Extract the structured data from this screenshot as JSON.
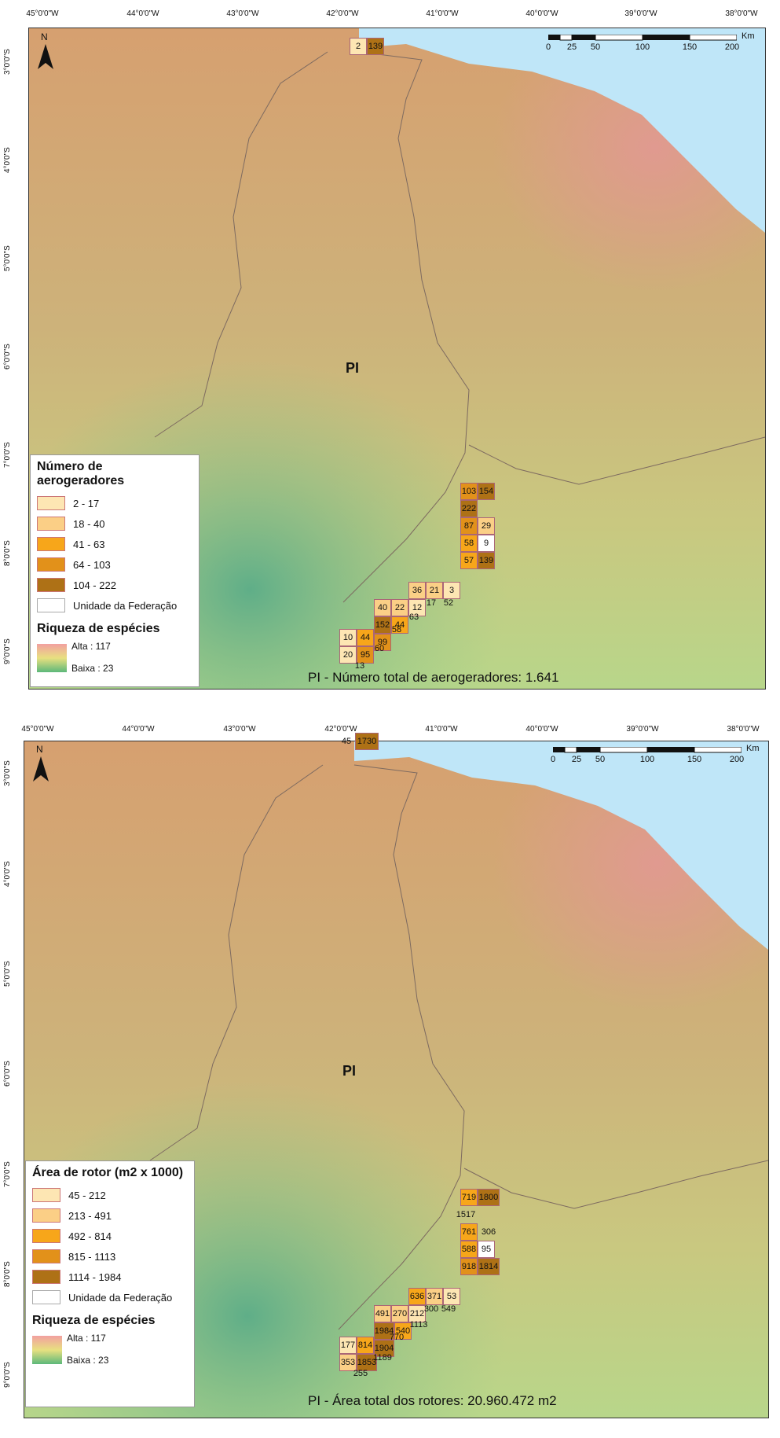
{
  "map1": {
    "lon_ticks": [
      "45°0'0\"W",
      "44°0'0\"W",
      "43°0'0\"W",
      "42°0'0\"W",
      "41°0'0\"W",
      "40°0'0\"W",
      "39°0'0\"W",
      "38°0'0\"W"
    ],
    "lat_ticks": [
      "3°0'0\"S",
      "4°0'0\"S",
      "5°0'0\"S",
      "6°0'0\"S",
      "7°0'0\"S",
      "8°0'0\"S",
      "9°0'0\"S"
    ],
    "north_label": "N",
    "scale_labels": [
      "0",
      "25",
      "50",
      "100",
      "150",
      "200"
    ],
    "scale_unit": "Km",
    "state_label": "PI",
    "legend_title": "Número de aerogeradores",
    "classes": [
      {
        "label": "2 - 17",
        "color": "#fde6b3"
      },
      {
        "label": "18 - 40",
        "color": "#fbcf86"
      },
      {
        "label": "41 - 63",
        "color": "#f7a61a"
      },
      {
        "label": "64 - 103",
        "color": "#e2911a"
      },
      {
        "label": "104 - 222",
        "color": "#ae7116"
      },
      {
        "label": "Unidade da Federação",
        "color": "#ffffff"
      }
    ],
    "richness_title": "Riqueza de espécies",
    "richness_high": "Alta : 117",
    "richness_low": "Baixa : 23",
    "caption": "PI - Número total de aerogeradores: 1.641",
    "cells": [
      "2",
      "139",
      "103",
      "154",
      "222",
      "87",
      "29",
      "58",
      "9",
      "57",
      "139",
      "36",
      "21",
      "3",
      "52",
      "40",
      "22",
      "12",
      "17",
      "152",
      "44",
      "63",
      "10",
      "44",
      "99",
      "58",
      "20",
      "95",
      "60",
      "13"
    ]
  },
  "map2": {
    "lon_ticks": [
      "45°0'0\"W",
      "44°0'0\"W",
      "43°0'0\"W",
      "42°0'0\"W",
      "41°0'0\"W",
      "40°0'0\"W",
      "39°0'0\"W",
      "38°0'0\"W"
    ],
    "lat_ticks": [
      "3°0'0\"S",
      "4°0'0\"S",
      "5°0'0\"S",
      "6°0'0\"S",
      "7°0'0\"S",
      "8°0'0\"S",
      "9°0'0\"S"
    ],
    "north_label": "N",
    "scale_labels": [
      "0",
      "25",
      "50",
      "100",
      "150",
      "200"
    ],
    "scale_unit": "Km",
    "state_label": "PI",
    "legend_title": "Área de rotor (m2 x 1000)",
    "classes": [
      {
        "label": "45 - 212",
        "color": "#fde6b3"
      },
      {
        "label": "213 - 491",
        "color": "#fbcf86"
      },
      {
        "label": "492 - 814",
        "color": "#f7a61a"
      },
      {
        "label": "815 - 1113",
        "color": "#e2911a"
      },
      {
        "label": "1114 - 1984",
        "color": "#ae7116"
      },
      {
        "label": "Unidade da Federação",
        "color": "#ffffff"
      }
    ],
    "richness_title": "Riqueza de espécies",
    "richness_high": "Alta : 117",
    "richness_low": "Baixa : 23",
    "caption": "PI - Área total dos rotores: 20.960.472 m2",
    "cells": [
      "45",
      "1730",
      "719",
      "1800",
      "1517",
      "761",
      "306",
      "588",
      "95",
      "918",
      "1814",
      "636",
      "371",
      "53",
      "549",
      "491",
      "270",
      "212",
      "300",
      "1984",
      "540",
      "1113",
      "177",
      "814",
      "1904",
      "770",
      "353",
      "1853",
      "1189",
      "255"
    ]
  }
}
